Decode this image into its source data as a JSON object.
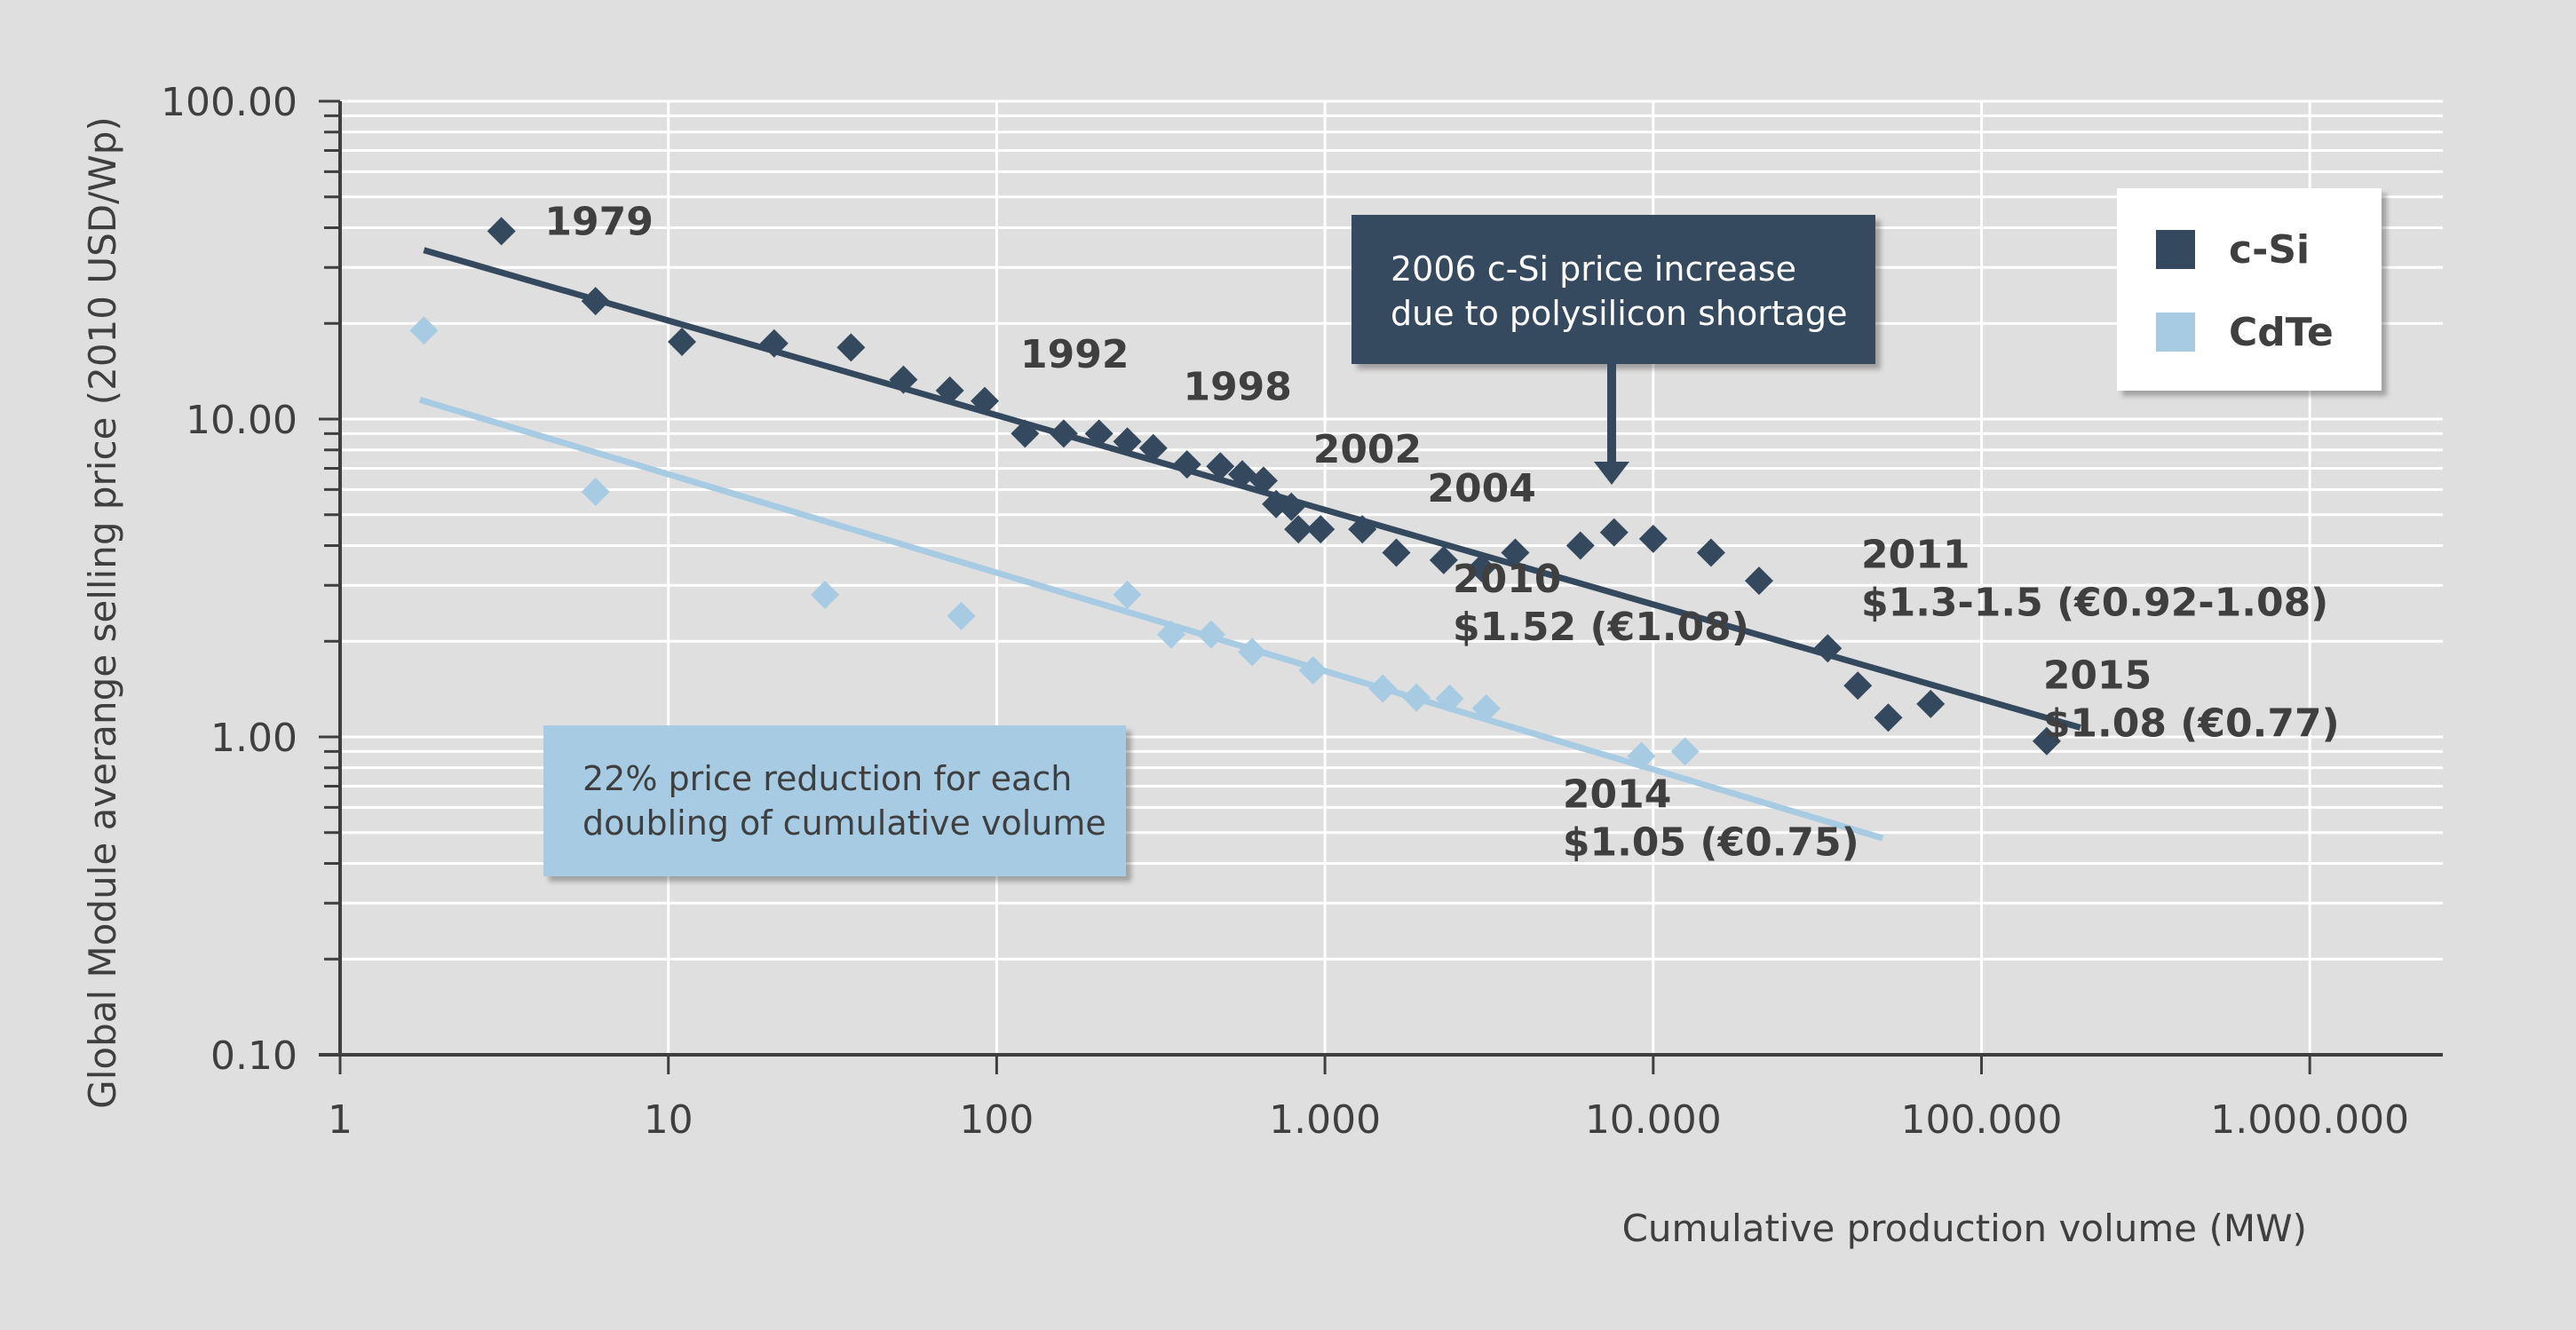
{
  "chart_data": {
    "type": "scatter",
    "x_scale": "log",
    "y_scale": "log",
    "xlim": [
      1,
      1000000
    ],
    "ylim": [
      0.1,
      100
    ],
    "xlabel": "Cumulative production volume (MW)",
    "ylabel": "Global Module averange selling price (2010 USD/Wp)",
    "x_ticks": [
      {
        "value": 1,
        "label": "1"
      },
      {
        "value": 10,
        "label": "10"
      },
      {
        "value": 100,
        "label": "100"
      },
      {
        "value": 1000,
        "label": "1.000"
      },
      {
        "value": 10000,
        "label": "10.000"
      },
      {
        "value": 100000,
        "label": "100.000"
      },
      {
        "value": 1000000,
        "label": "1.000.000"
      }
    ],
    "y_ticks": [
      {
        "value": 0.1,
        "label": "0.10"
      },
      {
        "value": 1,
        "label": "1.00"
      },
      {
        "value": 10,
        "label": "10.00"
      },
      {
        "value": 100,
        "label": "100.00"
      }
    ],
    "grid": true,
    "legend_position": "top-right",
    "series": [
      {
        "name": "c-Si",
        "color": "#34495e",
        "points": [
          [
            3.1,
            39
          ],
          [
            6,
            23.5
          ],
          [
            11,
            17.5
          ],
          [
            21,
            17.3
          ],
          [
            36,
            16.8
          ],
          [
            52,
            13.3
          ],
          [
            72,
            12.3
          ],
          [
            92,
            11.4
          ],
          [
            122,
            9
          ],
          [
            160,
            9
          ],
          [
            205,
            9
          ],
          [
            250,
            8.5
          ],
          [
            300,
            8.1
          ],
          [
            380,
            7.2
          ],
          [
            480,
            7.1
          ],
          [
            560,
            6.7
          ],
          [
            650,
            6.4
          ],
          [
            710,
            5.4
          ],
          [
            790,
            5.3
          ],
          [
            830,
            4.5
          ],
          [
            970,
            4.5
          ],
          [
            1300,
            4.5
          ],
          [
            1650,
            3.8
          ],
          [
            2300,
            3.6
          ],
          [
            3000,
            3.4
          ],
          [
            3800,
            3.8
          ],
          [
            6000,
            4
          ],
          [
            7600,
            4.4
          ],
          [
            10000,
            4.2
          ],
          [
            15000,
            3.8
          ],
          [
            21000,
            3.1
          ],
          [
            34000,
            1.9
          ],
          [
            42000,
            1.45
          ],
          [
            52000,
            1.15
          ],
          [
            70000,
            1.27
          ],
          [
            158000,
            0.97
          ]
        ],
        "trend": [
          [
            1.8,
            34
          ],
          [
            200000,
            1.07
          ]
        ]
      },
      {
        "name": "CdTe",
        "color": "#a7cbe3",
        "points": [
          [
            1.8,
            19
          ],
          [
            6,
            5.9
          ],
          [
            30,
            2.8
          ],
          [
            78,
            2.4
          ],
          [
            250,
            2.8
          ],
          [
            340,
            2.1
          ],
          [
            450,
            2.1
          ],
          [
            600,
            1.85
          ],
          [
            920,
            1.62
          ],
          [
            1500,
            1.42
          ],
          [
            1900,
            1.33
          ],
          [
            2400,
            1.32
          ],
          [
            3100,
            1.23
          ],
          [
            9200,
            0.87
          ],
          [
            12500,
            0.9
          ]
        ],
        "trend": [
          [
            1.75,
            11.5
          ],
          [
            50000,
            0.48
          ]
        ]
      }
    ],
    "annotations": [
      {
        "lines": [
          "1979"
        ],
        "x": 4.2,
        "y": 38
      },
      {
        "lines": [
          "1992"
        ],
        "x": 118,
        "y": 14.5
      },
      {
        "lines": [
          "1998"
        ],
        "x": 370,
        "y": 11.5
      },
      {
        "lines": [
          "2002"
        ],
        "x": 920,
        "y": 7.3
      },
      {
        "lines": [
          "2004"
        ],
        "x": 2050,
        "y": 5.5
      },
      {
        "lines": [
          "2010",
          "$1.52 (€1.08)"
        ],
        "x": 2450,
        "y": 2.85
      },
      {
        "lines": [
          "2011",
          "$1.3-1.5 (€0.92-1.08)"
        ],
        "x": 43000,
        "y": 3.4
      },
      {
        "lines": [
          "2014",
          "$1.05 (€0.75)"
        ],
        "x": 5300,
        "y": 0.6
      },
      {
        "lines": [
          "2015",
          "$1.08 (€0.77)"
        ],
        "x": 154000,
        "y": 1.42
      }
    ],
    "callouts": [
      {
        "lines": [
          "2006 c-Si price increase",
          "due to polysilicon shortage"
        ],
        "points_at": [
          7600,
          6.5
        ]
      },
      {
        "lines": [
          "22% price reduction for each",
          "doubling of cumulative volume"
        ]
      }
    ]
  }
}
